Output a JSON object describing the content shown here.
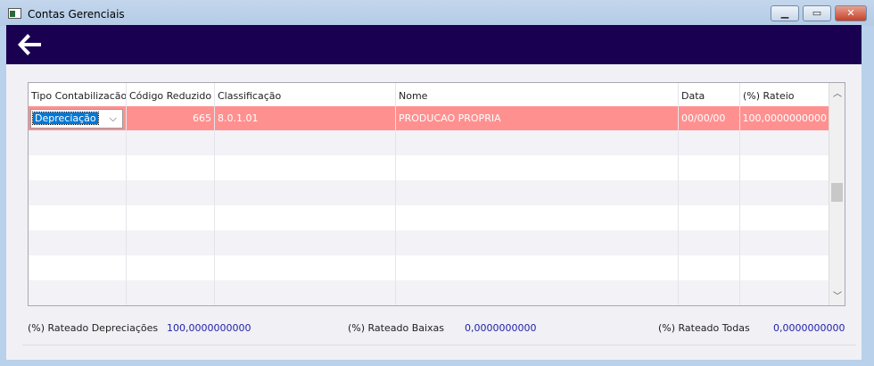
{
  "window": {
    "title": "Contas Gerenciais",
    "minimize": "▁",
    "maximize": "▭",
    "close": "✕"
  },
  "toolbar": {
    "back_icon": "arrow-left-icon"
  },
  "grid": {
    "columns": [
      "Tipo Contabilizacão",
      "Código Reduzido",
      "Classificação",
      "Nome",
      "Data",
      "(%) Rateio"
    ],
    "rows": [
      {
        "tipo": "Depreciação",
        "codigo": "665",
        "classificacao": "8.0.1.01",
        "nome": "PRODUCAO PROPRIA",
        "data": "00/00/00",
        "rateio": "100,0000000000"
      }
    ],
    "selected_row_color": "#ff9090"
  },
  "footer": {
    "depreciacoes_label": "(%) Rateado Depreciações",
    "depreciacoes_value": "100,0000000000",
    "baixas_label": "(%) Rateado Baixas",
    "baixas_value": "0,0000000000",
    "todas_label": "(%) Rateado Todas",
    "todas_value": "0,0000000000"
  }
}
